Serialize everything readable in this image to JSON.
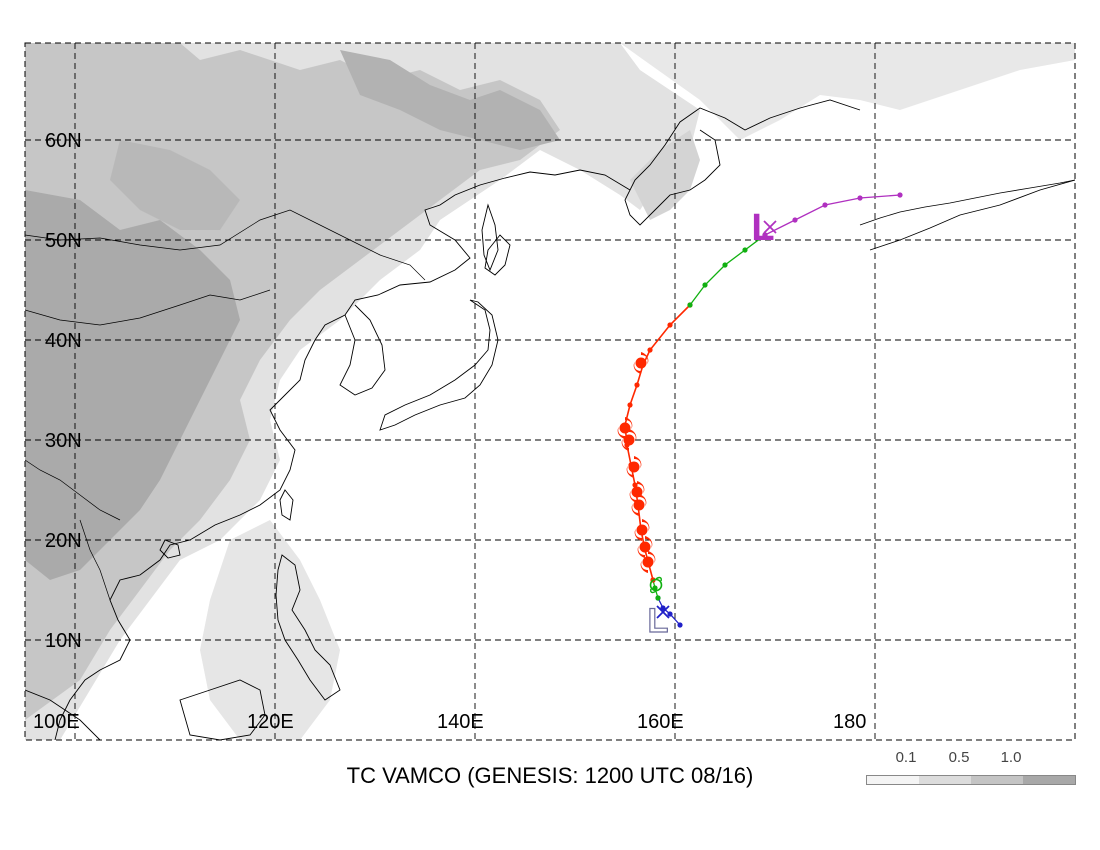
{
  "title": "TC VAMCO (GENESIS: 1200 UTC 08/16)",
  "lat_labels": [
    "60N",
    "50N",
    "40N",
    "30N",
    "20N",
    "10N"
  ],
  "lon_labels": [
    "100E",
    "120E",
    "140E",
    "160E",
    "180"
  ],
  "legend": {
    "labels": [
      "0.1",
      "0.5",
      "1.0"
    ],
    "colors": [
      "#f4f4f4",
      "#dcdcdc",
      "#c4c4c4",
      "#a8a8a8"
    ]
  },
  "colors": {
    "track_early": "#2020c8",
    "track_transition": "#10b010",
    "track_mature": "#ff2800",
    "track_extratropical": "#b030c0",
    "genesis_marker": "#6a6a9a",
    "shading_light": "#e4e4e4",
    "shading_medium": "#c8c8c8",
    "shading_dark": "#aaaaaa"
  },
  "track": {
    "early": [
      [
        160.5,
        11.5
      ],
      [
        159.5,
        12.6
      ],
      [
        158.8,
        13.2
      ],
      [
        158.3,
        14.2
      ]
    ],
    "transition": [
      [
        158.3,
        14.2
      ],
      [
        158.0,
        15.2
      ],
      [
        157.8,
        16.0
      ]
    ],
    "mature": [
      [
        157.8,
        16.0
      ],
      [
        157.4,
        17.5
      ],
      [
        157.0,
        19.0
      ],
      [
        156.6,
        21.0
      ],
      [
        156.3,
        23.5
      ],
      [
        156.0,
        25.5
      ],
      [
        155.6,
        27.5
      ],
      [
        155.2,
        29.5
      ],
      [
        155.0,
        31.5
      ],
      [
        155.5,
        33.5
      ],
      [
        156.2,
        35.5
      ],
      [
        156.8,
        37.5
      ],
      [
        157.5,
        39.0
      ],
      [
        159.5,
        41.5
      ],
      [
        161.5,
        43.5
      ]
    ],
    "late": [
      [
        161.5,
        43.5
      ],
      [
        163.0,
        45.5
      ],
      [
        165.0,
        47.5
      ],
      [
        167.0,
        49.0
      ],
      [
        169.0,
        50.5
      ]
    ],
    "extratropical": [
      [
        169.0,
        50.5
      ],
      [
        172.0,
        52.0
      ],
      [
        175.0,
        53.5
      ],
      [
        178.5,
        54.2
      ],
      [
        182.5,
        54.5
      ]
    ]
  },
  "markers": {
    "genesis": {
      "lon": 158.3,
      "lat": 12.6,
      "symbol": "L"
    },
    "genesis_x": {
      "lon": 158.8,
      "lat": 12.8
    },
    "final": {
      "lon": 168.8,
      "lat": 51.2,
      "symbol": "L"
    },
    "final_x": {
      "lon": 169.5,
      "lat": 51.3
    }
  }
}
